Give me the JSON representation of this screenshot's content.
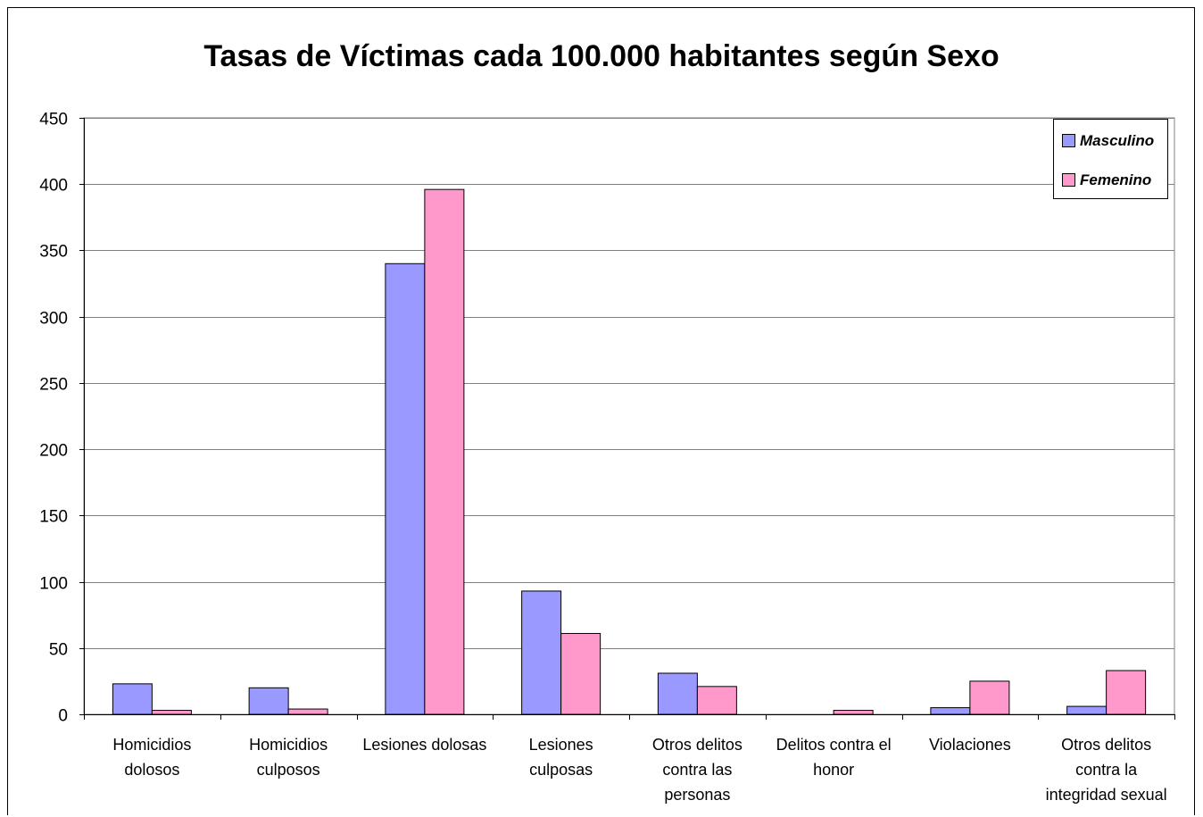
{
  "chart_data": {
    "type": "bar",
    "title": "Tasas de Víctimas cada 100.000 habitantes según Sexo",
    "xlabel": "",
    "ylabel": "",
    "ylim": [
      0,
      450
    ],
    "yticks": [
      0,
      50,
      100,
      150,
      200,
      250,
      300,
      350,
      400,
      450
    ],
    "grid": true,
    "legend_position": "top-right",
    "categories": [
      [
        "Homicidios",
        "dolosos"
      ],
      [
        "Homicidios",
        "culposos"
      ],
      [
        "Lesiones dolosas"
      ],
      [
        "Lesiones",
        "culposas"
      ],
      [
        "Otros delitos",
        "contra las",
        "personas"
      ],
      [
        "Delitos contra el",
        "honor"
      ],
      [
        "Violaciones"
      ],
      [
        "Otros delitos",
        "contra la",
        "integridad sexual"
      ]
    ],
    "series": [
      {
        "name": "Masculino",
        "color": "#9999ff",
        "values": [
          23,
          20,
          340,
          93,
          31,
          0,
          5,
          6
        ]
      },
      {
        "name": "Femenino",
        "color": "#ff99cc",
        "values": [
          3,
          4,
          396,
          61,
          21,
          3,
          25,
          33
        ]
      }
    ]
  }
}
